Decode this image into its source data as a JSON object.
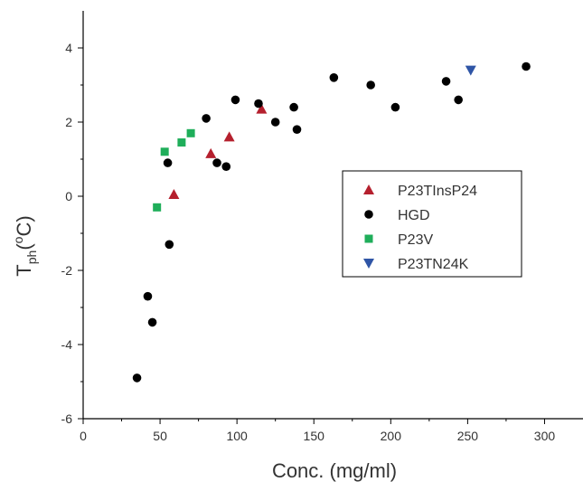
{
  "chart_data": {
    "type": "scatter",
    "xlabel": "Conc. (mg/ml)",
    "ylabel": {
      "base": "T",
      "sub": "ph",
      "open": "(",
      "sup": "o",
      "rest": "C)"
    },
    "xlim": [
      0,
      325
    ],
    "ylim": [
      -6,
      5
    ],
    "xticks": [
      0,
      50,
      100,
      150,
      200,
      250,
      300
    ],
    "yticks": [
      -6,
      -4,
      -2,
      0,
      2,
      4
    ],
    "grid": false,
    "legend_position": "right-center",
    "series": [
      {
        "name": "P23TInsP24",
        "marker": "triangle-up",
        "color": "#b5202e",
        "points": [
          [
            59,
            0.05
          ],
          [
            83,
            1.15
          ],
          [
            95,
            1.6
          ],
          [
            116,
            2.35
          ]
        ]
      },
      {
        "name": "HGD",
        "marker": "circle",
        "color": "#000000",
        "points": [
          [
            35,
            -4.9
          ],
          [
            42,
            -2.7
          ],
          [
            45,
            -3.4
          ],
          [
            55,
            0.9
          ],
          [
            56,
            -1.3
          ],
          [
            80,
            2.1
          ],
          [
            87,
            0.9
          ],
          [
            93,
            0.8
          ],
          [
            99,
            2.6
          ],
          [
            114,
            2.5
          ],
          [
            125,
            2.0
          ],
          [
            137,
            2.4
          ],
          [
            139,
            1.8
          ],
          [
            163,
            3.2
          ],
          [
            187,
            3.0
          ],
          [
            203,
            2.4
          ],
          [
            236,
            3.1
          ],
          [
            244,
            2.6
          ],
          [
            288,
            3.5
          ]
        ]
      },
      {
        "name": "P23V",
        "marker": "square",
        "color": "#1fae5a",
        "points": [
          [
            48,
            -0.3
          ],
          [
            53,
            1.2
          ],
          [
            64,
            1.45
          ],
          [
            70,
            1.7
          ]
        ]
      },
      {
        "name": "P23TN24K",
        "marker": "triangle-down",
        "color": "#2f55a6",
        "points": [
          [
            252,
            3.4
          ]
        ]
      }
    ]
  }
}
